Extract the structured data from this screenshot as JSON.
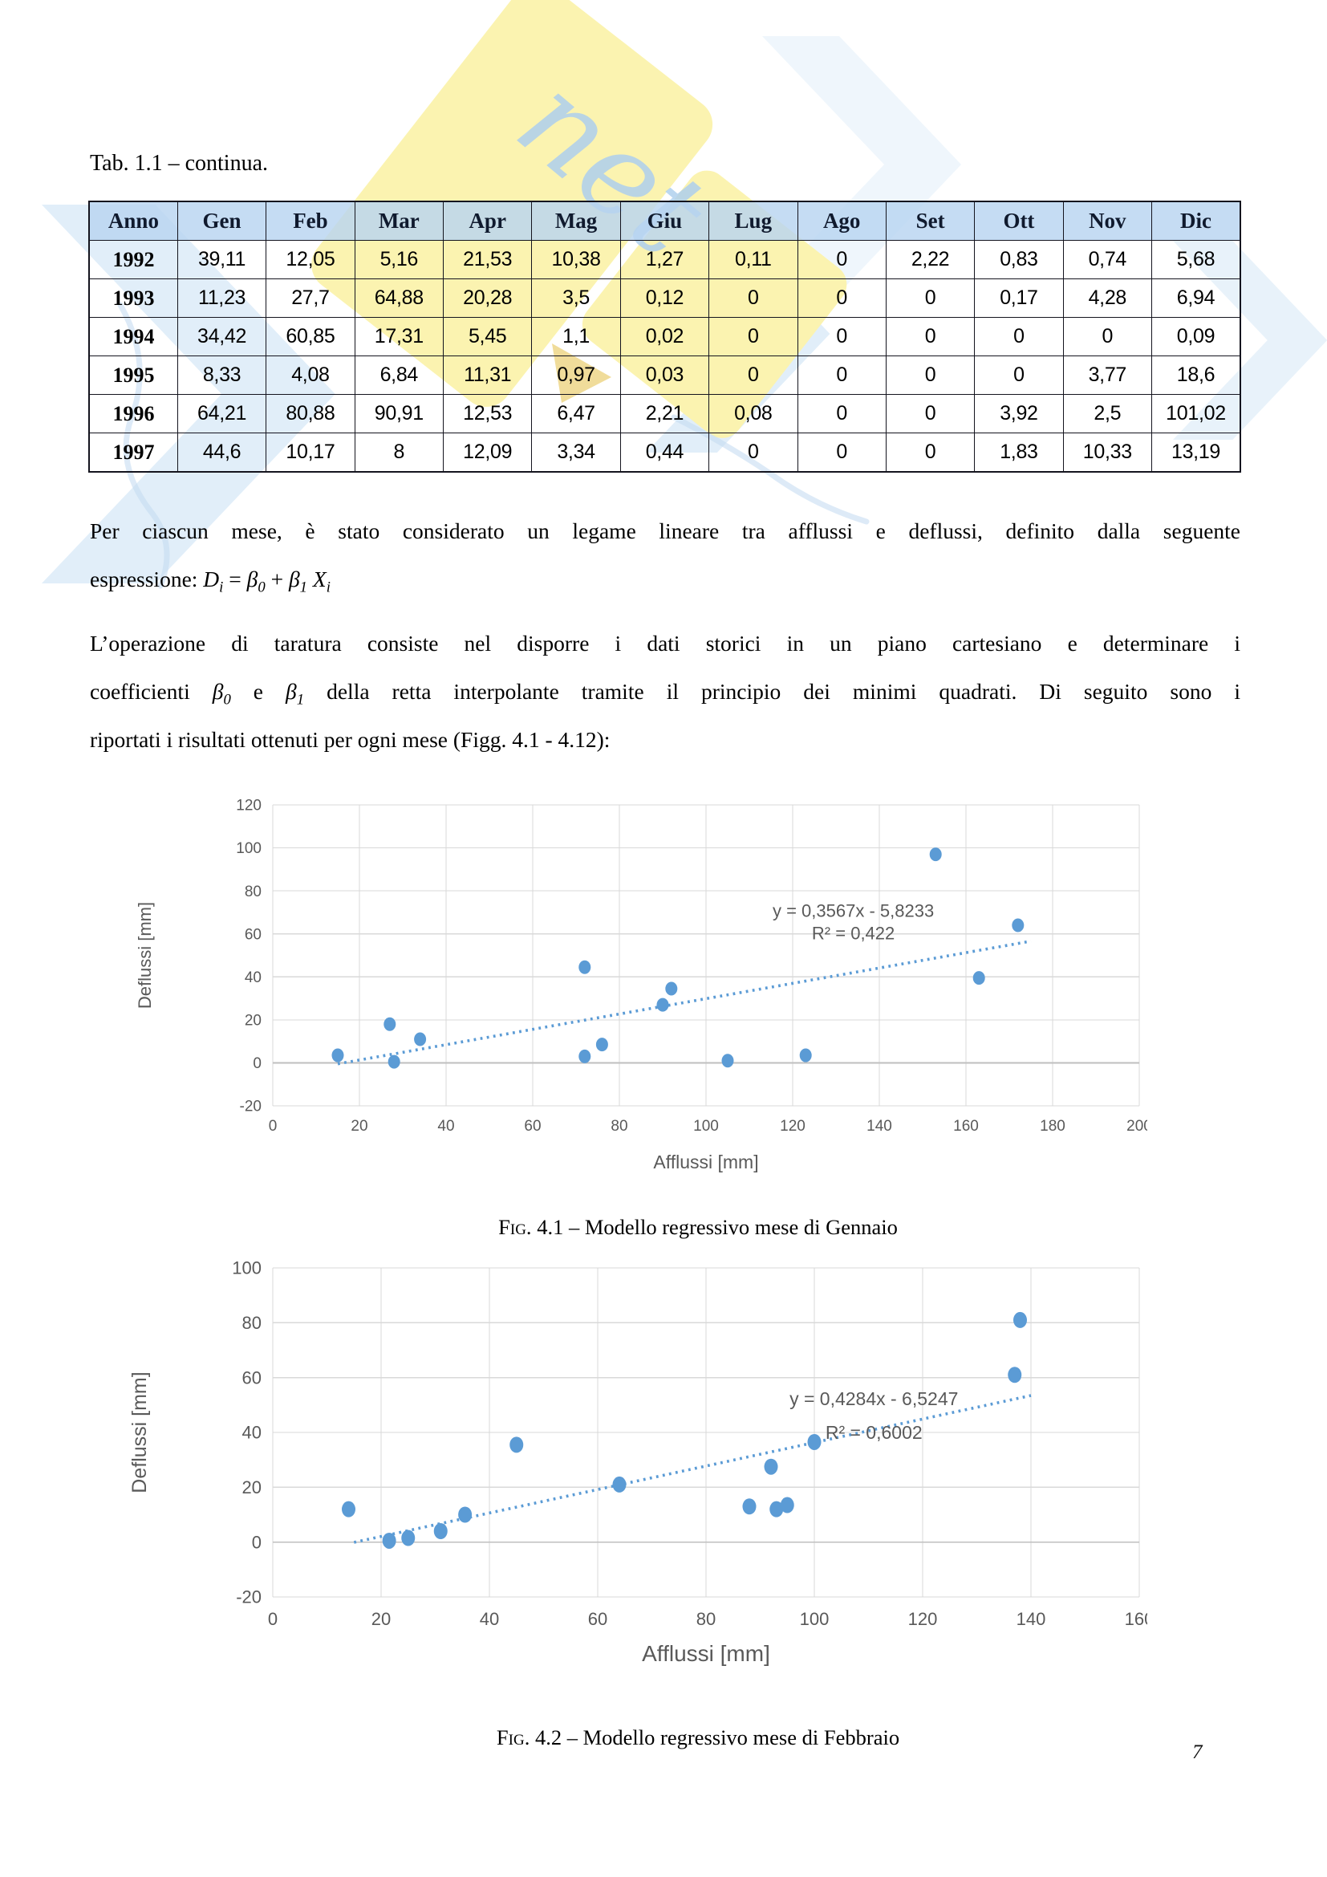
{
  "page": {
    "number": "7"
  },
  "table": {
    "title": "Tab. 1.1 – continua.",
    "headers": [
      "Anno",
      "Gen",
      "Feb",
      "Mar",
      "Apr",
      "Mag",
      "Giu",
      "Lug",
      "Ago",
      "Set",
      "Ott",
      "Nov",
      "Dic"
    ],
    "rows": [
      [
        "1992",
        "39,11",
        "12,05",
        "5,16",
        "21,53",
        "10,38",
        "1,27",
        "0,11",
        "0",
        "2,22",
        "0,83",
        "0,74",
        "5,68"
      ],
      [
        "1993",
        "11,23",
        "27,7",
        "64,88",
        "20,28",
        "3,5",
        "0,12",
        "0",
        "0",
        "0",
        "0,17",
        "4,28",
        "6,94"
      ],
      [
        "1994",
        "34,42",
        "60,85",
        "17,31",
        "5,45",
        "1,1",
        "0,02",
        "0",
        "0",
        "0",
        "0",
        "0",
        "0,09"
      ],
      [
        "1995",
        "8,33",
        "4,08",
        "6,84",
        "11,31",
        "0,97",
        "0,03",
        "0",
        "0",
        "0",
        "0",
        "3,77",
        "18,6"
      ],
      [
        "1996",
        "64,21",
        "80,88",
        "90,91",
        "12,53",
        "6,47",
        "2,21",
        "0,08",
        "0",
        "0",
        "3,92",
        "2,5",
        "101,02"
      ],
      [
        "1997",
        "44,6",
        "10,17",
        "8",
        "12,09",
        "3,34",
        "0,44",
        "0",
        "0",
        "0",
        "1,83",
        "10,33",
        "13,19"
      ]
    ]
  },
  "paragraphs": {
    "p1": {
      "lines": [
        [
          {
            "t": "Per ciascun mese, è stato considerato un legame lineare tra afflussi e deflussi, definito dalla seguente"
          }
        ],
        [
          {
            "t": "espressione: "
          },
          {
            "m": "D_i = β_0 + β_1 X_i"
          }
        ]
      ]
    },
    "p2": {
      "lines": [
        [
          {
            "t": "L’operazione di taratura consiste nel disporre i dati storici in un piano cartesiano e determinare i"
          }
        ],
        [
          {
            "t": "coefficienti "
          },
          {
            "m": "β_0"
          },
          {
            "t": " e "
          },
          {
            "m": "β_1"
          },
          {
            "t": " della retta interpolante tramite il principio dei minimi quadrati. Di seguito sono i"
          }
        ],
        [
          {
            "t": "riportati i risultati ottenuti per ogni mese (Figg. 4.1 - 4.12):"
          }
        ]
      ]
    }
  },
  "chart_data": [
    {
      "type": "scatter",
      "xlabel": "Afflussi [mm]",
      "ylabel": "Deflussi [mm]",
      "xlim": [
        0,
        200
      ],
      "ylim": [
        -20,
        120
      ],
      "xtick_step": 20,
      "ytick_step": 20,
      "grid": true,
      "legend": "none",
      "points": [
        [
          15,
          3.5
        ],
        [
          27,
          18
        ],
        [
          28,
          0.5
        ],
        [
          34,
          11
        ],
        [
          72,
          3
        ],
        [
          72,
          44.5
        ],
        [
          76,
          8.5
        ],
        [
          90,
          27
        ],
        [
          92,
          34.5
        ],
        [
          105,
          1
        ],
        [
          123,
          3.5
        ],
        [
          153,
          97
        ],
        [
          163,
          39.5
        ],
        [
          172,
          64
        ]
      ],
      "trendline": {
        "slope": 0.3567,
        "intercept": -5.8233,
        "x_start": 15,
        "x_end": 175,
        "style": "dotted"
      },
      "equation": "y = 0,3567x - 5,8233",
      "r2": "R² = 0,422",
      "equation_pos": [
        134,
        68
      ],
      "marker_color": "#5B9BD5",
      "caption_label": "Fig.",
      "caption_text": " 4.1 – Modello regressivo mese di Gennaio"
    },
    {
      "type": "scatter",
      "xlabel": "Afflussi [mm]",
      "ylabel": "Deflussi [mm]",
      "xlim": [
        0,
        160
      ],
      "ylim": [
        -20,
        100
      ],
      "xtick_step": 20,
      "ytick_step": 20,
      "grid": true,
      "legend": "none",
      "points": [
        [
          14,
          12
        ],
        [
          21.5,
          0.5
        ],
        [
          25,
          1.5
        ],
        [
          31,
          4
        ],
        [
          35.5,
          10
        ],
        [
          45,
          35.5
        ],
        [
          64,
          21
        ],
        [
          88,
          13
        ],
        [
          92,
          27.5
        ],
        [
          93,
          12
        ],
        [
          95,
          13.5
        ],
        [
          100,
          36.5
        ],
        [
          137,
          61
        ],
        [
          138,
          81
        ]
      ],
      "trendline": {
        "slope": 0.4284,
        "intercept": -6.5247,
        "x_start": 15,
        "x_end": 140,
        "style": "dotted"
      },
      "equation": "y = 0,4284x - 6,5247",
      "r2": "R² = 0,6002",
      "equation_pos": [
        111,
        50
      ],
      "marker_color": "#5B9BD5",
      "caption_label": "Fig.",
      "caption_text": " 4.2 – Modello regressivo mese di Febbraio"
    }
  ],
  "watermark": {
    "script_text": "net"
  },
  "colors": {
    "marker": "#5B9BD5",
    "grid": "#D9D9D9",
    "axis": "#BFBFBF",
    "chart_label": "#595959",
    "table_header_bg": "#BDD6EE",
    "watermark_yellow": "#FBF2A7",
    "watermark_blue": "#C8E0F4"
  }
}
